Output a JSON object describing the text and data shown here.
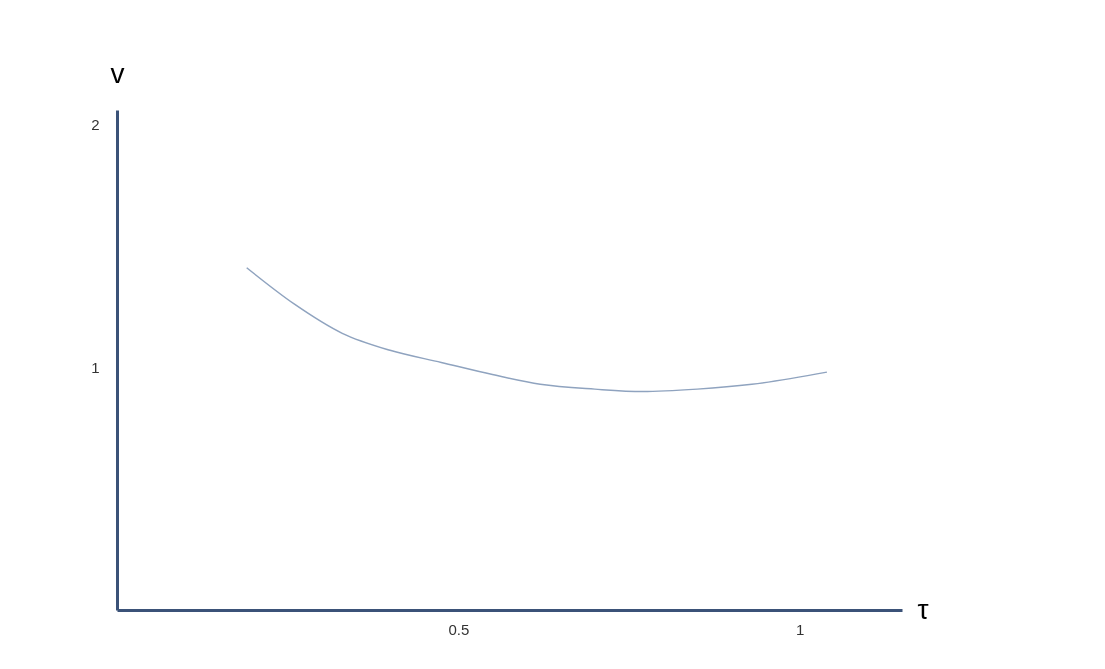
{
  "chart_data": {
    "type": "line",
    "xlabel": "τ",
    "ylabel": "v",
    "x": [
      0.19,
      0.26,
      0.33,
      0.4,
      0.475,
      0.55,
      0.62,
      0.7,
      0.77,
      0.85,
      0.93,
      1.04
    ],
    "series": [
      {
        "color": "#8fa3bf",
        "values": [
          1.41,
          1.26,
          1.14,
          1.07,
          1.02,
          0.97,
          0.93,
          0.91,
          0.9,
          0.91,
          0.93,
          0.98
        ]
      }
    ],
    "xlim": [
      0,
      1.15
    ],
    "ylim": [
      0,
      2.06
    ],
    "xticks": [
      0.5,
      {
        "value": 1,
        "label": "1"
      }
    ],
    "yticks": [
      1,
      2
    ],
    "grid": false,
    "marker": "none",
    "line_style": "solid"
  }
}
